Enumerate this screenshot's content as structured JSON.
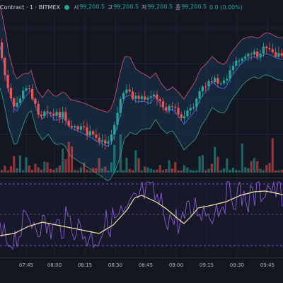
{
  "header": {
    "symbol": "Contract · 1 · BITMEX",
    "ohlc": [
      {
        "key": "시",
        "value": "99,200.5"
      },
      {
        "key": "고",
        "value": "99,200.5"
      },
      {
        "key": "저",
        "value": "99,200.5"
      },
      {
        "key": "종",
        "value": "99,200.5"
      }
    ],
    "change": "0.0 (0.00%)"
  },
  "colors": {
    "background": "#131722",
    "up": "#26a69a",
    "down": "#ef5350",
    "band": "#b84a6b",
    "band_fill": "#1a3550",
    "basis": "#4c5bd4",
    "rsi": "#7e57c2",
    "rsi_ma": "#f5e6a3",
    "grid": "#1f2333"
  },
  "chart_data": {
    "type": "candlestick",
    "indicators": [
      "Bollinger Bands",
      "Volume",
      "RSI with moving average"
    ],
    "x_ticks": [
      "07:45",
      "08:00",
      "08:15",
      "08:30",
      "08:45",
      "09:00",
      "09:15",
      "09:30",
      "09:45"
    ],
    "price_path": [
      [
        0,
        60
      ],
      [
        6,
        85
      ],
      [
        12,
        120
      ],
      [
        22,
        155
      ],
      [
        34,
        132
      ],
      [
        44,
        122
      ],
      [
        52,
        150
      ],
      [
        60,
        162
      ],
      [
        68,
        152
      ],
      [
        78,
        165
      ],
      [
        90,
        160
      ],
      [
        100,
        175
      ],
      [
        112,
        180
      ],
      [
        122,
        185
      ],
      [
        134,
        192
      ],
      [
        146,
        198
      ],
      [
        154,
        202
      ],
      [
        162,
        186
      ],
      [
        170,
        155
      ],
      [
        176,
        132
      ],
      [
        184,
        128
      ],
      [
        192,
        138
      ],
      [
        202,
        137
      ],
      [
        212,
        140
      ],
      [
        220,
        130
      ],
      [
        228,
        144
      ],
      [
        236,
        152
      ],
      [
        244,
        148
      ],
      [
        252,
        158
      ],
      [
        260,
        170
      ],
      [
        268,
        160
      ],
      [
        276,
        150
      ],
      [
        284,
        132
      ],
      [
        292,
        122
      ],
      [
        300,
        110
      ],
      [
        310,
        118
      ],
      [
        318,
        120
      ],
      [
        326,
        103
      ],
      [
        334,
        93
      ],
      [
        342,
        82
      ],
      [
        350,
        77
      ],
      [
        358,
        74
      ],
      [
        366,
        77
      ],
      [
        374,
        70
      ],
      [
        382,
        71
      ],
      [
        390,
        76
      ],
      [
        400,
        78
      ]
    ],
    "band_width": [
      [
        0,
        58
      ],
      [
        20,
        50
      ],
      [
        40,
        28
      ],
      [
        60,
        30
      ],
      [
        80,
        34
      ],
      [
        100,
        40
      ],
      [
        120,
        44
      ],
      [
        140,
        46
      ],
      [
        160,
        50
      ],
      [
        170,
        60
      ],
      [
        180,
        56
      ],
      [
        200,
        40
      ],
      [
        220,
        33
      ],
      [
        240,
        30
      ],
      [
        260,
        36
      ],
      [
        280,
        42
      ],
      [
        300,
        36
      ],
      [
        320,
        34
      ],
      [
        340,
        33
      ],
      [
        360,
        28
      ],
      [
        380,
        30
      ],
      [
        400,
        30
      ]
    ],
    "rsi_ma_path": [
      [
        0,
        333
      ],
      [
        20,
        330
      ],
      [
        40,
        320
      ],
      [
        60,
        314
      ],
      [
        80,
        318
      ],
      [
        100,
        322
      ],
      [
        120,
        326
      ],
      [
        140,
        330
      ],
      [
        160,
        318
      ],
      [
        180,
        296
      ],
      [
        190,
        280
      ],
      [
        200,
        276
      ],
      [
        220,
        285
      ],
      [
        235,
        295
      ],
      [
        250,
        308
      ],
      [
        260,
        316
      ],
      [
        270,
        306
      ],
      [
        280,
        294
      ],
      [
        300,
        290
      ],
      [
        320,
        285
      ],
      [
        340,
        276
      ],
      [
        360,
        271
      ],
      [
        375,
        270
      ],
      [
        385,
        272
      ],
      [
        400,
        275
      ]
    ]
  }
}
